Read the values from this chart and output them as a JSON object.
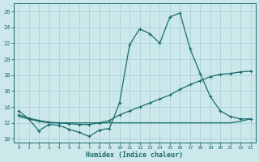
{
  "xlabel": "Humidex (Indice chaleur)",
  "xlim": [
    -0.5,
    23.5
  ],
  "ylim": [
    9.5,
    27.0
  ],
  "yticks": [
    10,
    12,
    14,
    16,
    18,
    20,
    22,
    24,
    26
  ],
  "xticks": [
    0,
    1,
    2,
    3,
    4,
    5,
    6,
    7,
    8,
    9,
    10,
    11,
    12,
    13,
    14,
    15,
    16,
    17,
    18,
    19,
    20,
    21,
    22,
    23
  ],
  "bg_color": "#cce8ea",
  "grid_color": "#a8d4d6",
  "line_color": "#1a6b6b",
  "line1_x": [
    0,
    1,
    2,
    3,
    4,
    5,
    6,
    7,
    8,
    9,
    10,
    11,
    12,
    13,
    14,
    15,
    16,
    17,
    18,
    19,
    20,
    21,
    22,
    23
  ],
  "line1_y": [
    13.5,
    12.5,
    11.0,
    11.8,
    11.7,
    11.2,
    10.8,
    10.3,
    11.1,
    11.3,
    14.5,
    21.8,
    23.8,
    23.2,
    22.0,
    25.3,
    25.8,
    21.3,
    18.2,
    15.3,
    13.5,
    12.8,
    12.5,
    12.5
  ],
  "line2_x": [
    0,
    1,
    2,
    3,
    4,
    5,
    6,
    7,
    8,
    9,
    10,
    11,
    12,
    13,
    14,
    15,
    16,
    17,
    18,
    19,
    20,
    21,
    22,
    23
  ],
  "line2_y": [
    13.0,
    12.6,
    12.3,
    12.1,
    12.0,
    11.9,
    11.8,
    11.8,
    12.0,
    12.3,
    13.0,
    13.5,
    14.0,
    14.5,
    15.0,
    15.5,
    16.2,
    16.8,
    17.3,
    17.8,
    18.1,
    18.2,
    18.4,
    18.5
  ],
  "line3_x": [
    0,
    1,
    2,
    3,
    4,
    5,
    6,
    7,
    8,
    9,
    10,
    11,
    12,
    13,
    14,
    15,
    16,
    17,
    18,
    19,
    20,
    21,
    22,
    23
  ],
  "line3_y": [
    12.8,
    12.5,
    12.2,
    12.0,
    12.0,
    12.0,
    12.0,
    12.0,
    12.0,
    12.0,
    12.0,
    12.0,
    12.0,
    12.0,
    12.0,
    12.0,
    12.0,
    12.0,
    12.0,
    12.0,
    12.0,
    12.0,
    12.2,
    12.5
  ]
}
